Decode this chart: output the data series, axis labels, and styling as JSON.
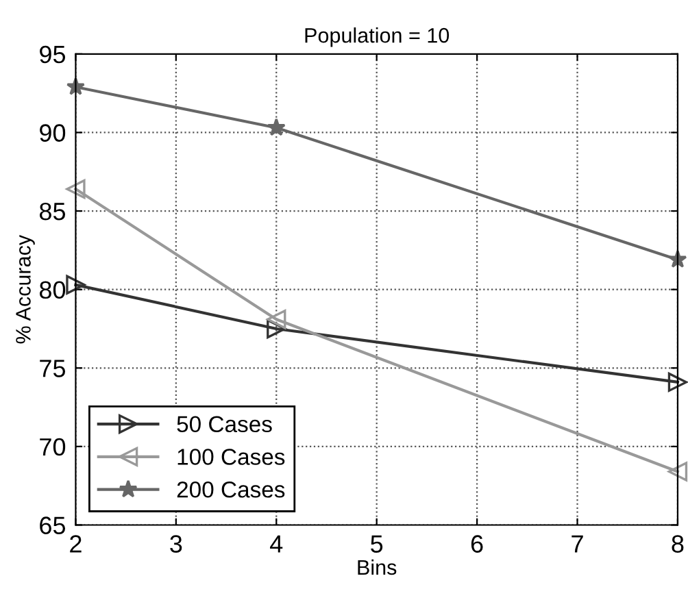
{
  "chart_data": {
    "type": "line",
    "title": "Population = 10",
    "xlabel": "Bins",
    "ylabel": "% Accuracy",
    "x": [
      2,
      4,
      8
    ],
    "series": [
      {
        "name": "50 Cases",
        "color": "#333333",
        "marker": "triangle-right",
        "values": [
          80.3,
          77.5,
          74.1
        ]
      },
      {
        "name": "100 Cases",
        "color": "#999999",
        "marker": "triangle-left",
        "values": [
          86.4,
          78.1,
          68.4
        ]
      },
      {
        "name": "200 Cases",
        "color": "#666666",
        "marker": "star",
        "values": [
          92.9,
          90.3,
          81.9
        ]
      }
    ],
    "xlim": [
      2,
      8
    ],
    "xticks": [
      2,
      3,
      4,
      5,
      6,
      7,
      8
    ],
    "ylim": [
      65,
      95
    ],
    "yticks": [
      65,
      70,
      75,
      80,
      85,
      90,
      95
    ],
    "grid": true,
    "legend": "bottom left",
    "line_style": "solid"
  }
}
